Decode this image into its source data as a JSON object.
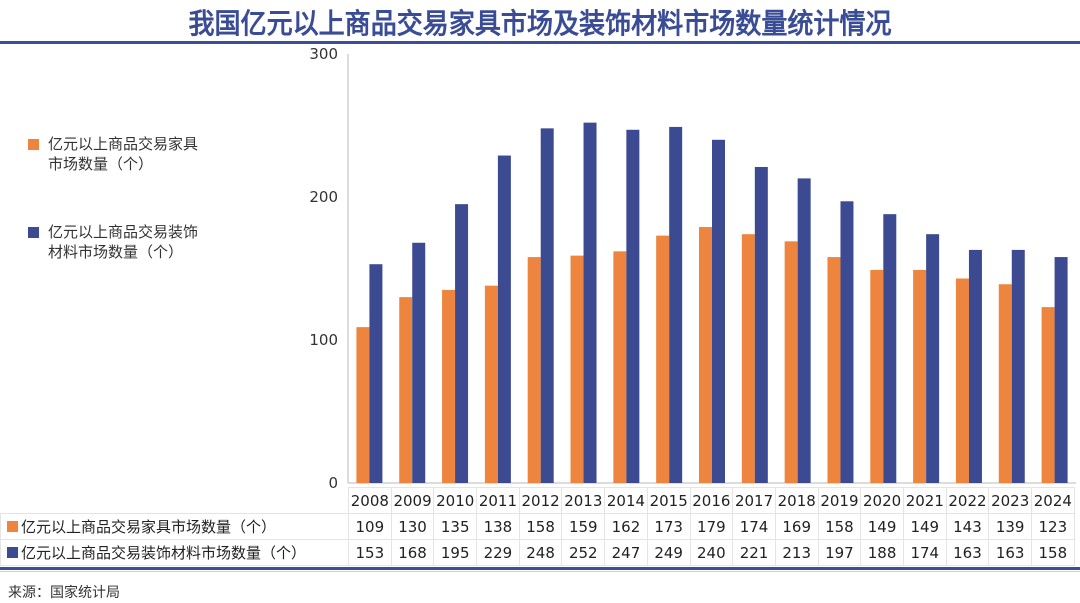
{
  "title": "我国亿元以上商品交易家具市场及装饰材料市场数量统计情况",
  "source": "来源：国家统计局",
  "colors": {
    "furniture": "#ee853f",
    "decoration": "#3c4b91",
    "rule": "#3d4e98",
    "axis": "#d0d0d0"
  },
  "legend": [
    {
      "label_line1": "亿元以上商品交易家具",
      "label_line2": "市场数量（个）"
    },
    {
      "label_line1": "亿元以上商品交易装饰",
      "label_line2": "材料市场数量（个）"
    }
  ],
  "chart_data": {
    "type": "bar",
    "title": "我国亿元以上商品交易家具市场及装饰材料市场数量统计情况",
    "xlabel": "",
    "ylabel": "",
    "ylim": [
      0,
      300
    ],
    "yticks": [
      0,
      100,
      200,
      300
    ],
    "grid": false,
    "legend_position": "left",
    "categories": [
      "2008",
      "2009",
      "2010",
      "2011",
      "2012",
      "2013",
      "2014",
      "2015",
      "2016",
      "2017",
      "2018",
      "2019",
      "2020",
      "2021",
      "2022",
      "2023",
      "2024"
    ],
    "series": [
      {
        "name": "亿元以上商品交易家具市场数量（个）",
        "values": [
          109,
          130,
          135,
          138,
          158,
          159,
          162,
          173,
          179,
          174,
          169,
          158,
          149,
          149,
          143,
          139,
          123
        ]
      },
      {
        "name": "亿元以上商品交易装饰材料市场数量（个）",
        "values": [
          153,
          168,
          195,
          229,
          248,
          252,
          247,
          249,
          240,
          221,
          213,
          197,
          188,
          174,
          163,
          163,
          158
        ]
      }
    ]
  }
}
